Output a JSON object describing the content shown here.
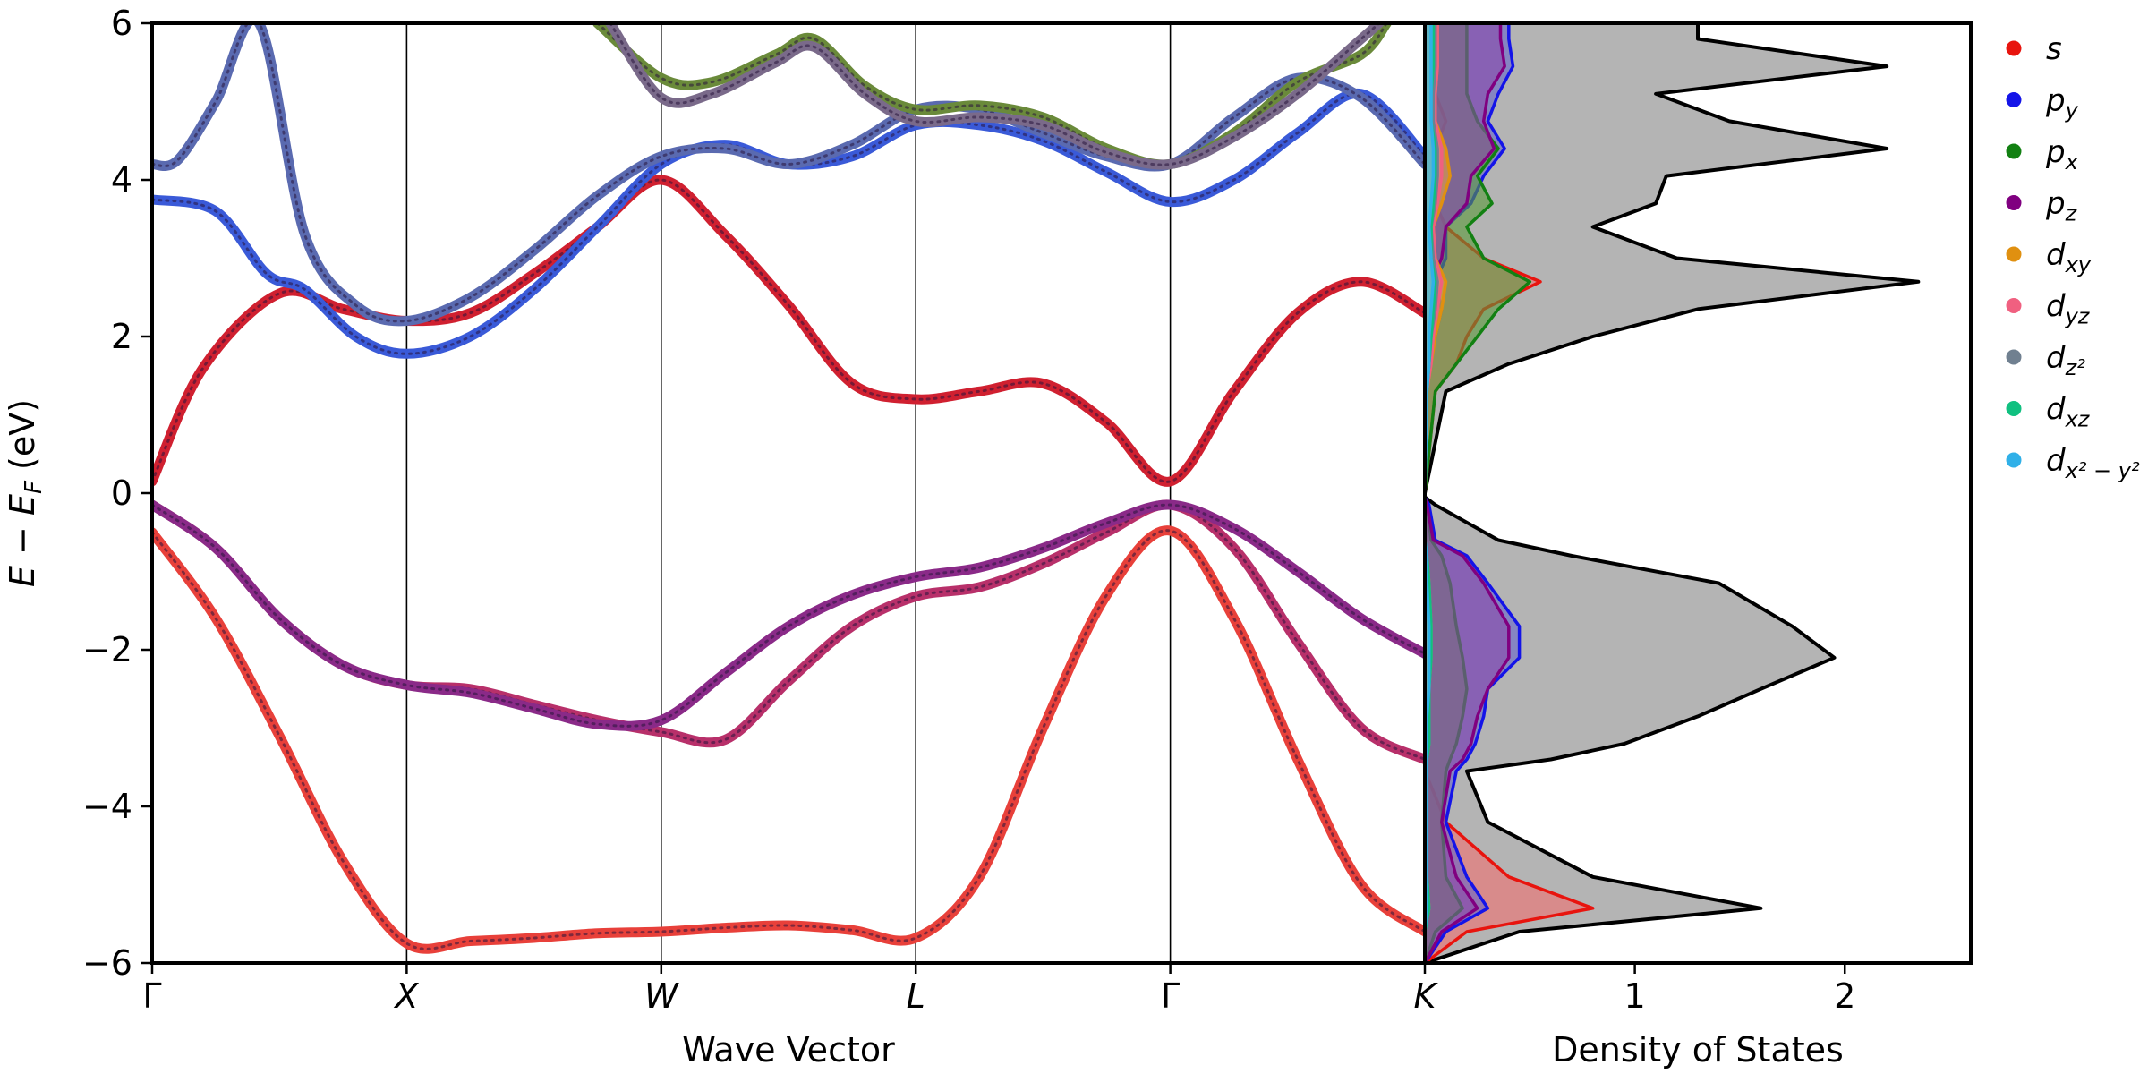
{
  "chart_data": [
    {
      "type": "line",
      "title": "",
      "xlabel": "Wave Vector",
      "ylabel": "E - E_F (eV)",
      "ylabel_parts": {
        "e": "E",
        "minus": " − ",
        "ef": "E",
        "ef_sub": "F",
        "unit": " (eV)"
      },
      "ylim": [
        -6,
        6
      ],
      "y_ticks": [
        -6,
        -4,
        -2,
        0,
        2,
        4,
        6
      ],
      "y_tick_labels": [
        "−6",
        "−4",
        "−2",
        "0",
        "2",
        "4",
        "6"
      ],
      "k_points": [
        {
          "label": "Γ",
          "x": 0.0
        },
        {
          "label": "X",
          "x": 1.0
        },
        {
          "label": "W",
          "x": 2.0
        },
        {
          "label": "L",
          "x": 3.0
        },
        {
          "label": "Γ",
          "x": 4.0
        },
        {
          "label": "K",
          "x": 5.0
        }
      ],
      "series": [
        {
          "name": "band-1",
          "color": "#e8403a",
          "x": [
            0,
            0.25,
            0.5,
            0.75,
            1,
            1.25,
            1.5,
            1.75,
            2,
            2.25,
            2.5,
            2.75,
            3,
            3.25,
            3.5,
            3.75,
            4,
            4.25,
            4.5,
            4.75,
            5
          ],
          "y": [
            -0.5,
            -1.6,
            -3.1,
            -4.7,
            -5.75,
            -5.72,
            -5.68,
            -5.62,
            -5.6,
            -5.55,
            -5.52,
            -5.58,
            -5.68,
            -4.9,
            -3.0,
            -1.3,
            -0.48,
            -1.6,
            -3.4,
            -5.0,
            -5.6
          ]
        },
        {
          "name": "band-2",
          "color": "#b8306a",
          "x": [
            0,
            0.25,
            0.5,
            0.75,
            1,
            1.25,
            1.5,
            1.75,
            2,
            2.25,
            2.5,
            2.75,
            3,
            3.25,
            3.5,
            3.75,
            4,
            4.25,
            4.5,
            4.75,
            5
          ],
          "y": [
            -0.15,
            -0.7,
            -1.6,
            -2.2,
            -2.45,
            -2.5,
            -2.7,
            -2.9,
            -3.05,
            -3.15,
            -2.4,
            -1.7,
            -1.32,
            -1.2,
            -0.9,
            -0.5,
            -0.15,
            -0.7,
            -1.9,
            -3.0,
            -3.4
          ]
        },
        {
          "name": "band-3",
          "color": "#8a2a88",
          "x": [
            0,
            0.25,
            0.5,
            0.75,
            1,
            1.25,
            1.5,
            1.75,
            2,
            2.25,
            2.5,
            2.75,
            3,
            3.25,
            3.5,
            3.75,
            4,
            4.25,
            4.5,
            4.75,
            5
          ],
          "y": [
            -0.15,
            -0.7,
            -1.6,
            -2.2,
            -2.45,
            -2.55,
            -2.75,
            -2.95,
            -2.9,
            -2.3,
            -1.7,
            -1.3,
            -1.07,
            -0.95,
            -0.7,
            -0.38,
            -0.15,
            -0.45,
            -1.0,
            -1.6,
            -2.05
          ]
        },
        {
          "name": "band-4",
          "color": "#d02030",
          "x": [
            0,
            0.2,
            0.5,
            0.75,
            1,
            1.25,
            1.5,
            1.75,
            2,
            2.25,
            2.5,
            2.75,
            3,
            3.25,
            3.5,
            3.75,
            4,
            4.25,
            4.5,
            4.75,
            5
          ],
          "y": [
            0.15,
            1.6,
            2.55,
            2.35,
            2.2,
            2.3,
            2.8,
            3.4,
            4.0,
            3.3,
            2.4,
            1.4,
            1.2,
            1.3,
            1.4,
            0.9,
            0.15,
            1.3,
            2.3,
            2.7,
            2.3
          ]
        },
        {
          "name": "band-5",
          "color": "#3a5ad8",
          "x": [
            0,
            0.25,
            0.45,
            0.6,
            0.8,
            1,
            1.25,
            1.5,
            1.75,
            2,
            2.25,
            2.5,
            2.75,
            3,
            3.25,
            3.5,
            3.75,
            4,
            4.25,
            4.5,
            4.75,
            5
          ],
          "y": [
            3.75,
            3.6,
            2.8,
            2.6,
            2.0,
            1.78,
            2.0,
            2.6,
            3.4,
            4.2,
            4.45,
            4.2,
            4.3,
            4.7,
            4.7,
            4.5,
            4.1,
            3.72,
            4.0,
            4.6,
            5.1,
            4.3
          ]
        },
        {
          "name": "band-6",
          "color": "#5a6ab0",
          "x": [
            0,
            0.1,
            0.25,
            0.42,
            0.6,
            0.8,
            1,
            1.25,
            1.5,
            1.75,
            2,
            2.25,
            2.5,
            2.75,
            3,
            3.25,
            3.5,
            3.75,
            4,
            4.25,
            4.5,
            4.75,
            5
          ],
          "y": [
            4.2,
            4.25,
            5.0,
            6.0,
            3.3,
            2.4,
            2.2,
            2.5,
            3.1,
            3.8,
            4.3,
            4.4,
            4.2,
            4.45,
            4.9,
            4.9,
            4.6,
            4.3,
            4.2,
            4.8,
            5.3,
            5.05,
            4.2
          ]
        },
        {
          "name": "band-7",
          "color": "#6a8a3a",
          "x": [
            1.75,
            2,
            2.2,
            2.45,
            2.6,
            2.8,
            3,
            3.25,
            3.5,
            3.75,
            4,
            4.25,
            4.5,
            4.75,
            4.85
          ],
          "y": [
            6.0,
            5.3,
            5.25,
            5.6,
            5.8,
            5.2,
            4.9,
            4.95,
            4.8,
            4.4,
            4.2,
            4.6,
            5.25,
            5.6,
            6.0
          ]
        },
        {
          "name": "band-8",
          "color": "#7a6a8a",
          "x": [
            1.8,
            2,
            2.2,
            2.45,
            2.6,
            2.8,
            3,
            3.25,
            3.5,
            3.75,
            4,
            4.25,
            4.5,
            4.75,
            4.82
          ],
          "y": [
            6.0,
            5.05,
            5.1,
            5.5,
            5.7,
            5.1,
            4.75,
            4.8,
            4.7,
            4.35,
            4.2,
            4.55,
            5.1,
            5.8,
            6.0
          ]
        }
      ]
    },
    {
      "type": "area",
      "title": "",
      "xlabel": "Density of States",
      "ylabel": "",
      "ylim": [
        -6,
        6
      ],
      "xlim": [
        0,
        2.6
      ],
      "x_ticks": [
        1,
        2
      ],
      "x_tick_labels": [
        "1",
        "2"
      ],
      "energies": [
        -6.0,
        -5.6,
        -5.3,
        -4.9,
        -4.2,
        -3.55,
        -3.4,
        -3.2,
        -2.85,
        -2.5,
        -2.1,
        -1.7,
        -1.15,
        -0.8,
        -0.6,
        -0.15,
        -0.05,
        0.0,
        1.3,
        1.65,
        2.0,
        2.35,
        2.7,
        3.0,
        3.4,
        3.7,
        4.05,
        4.4,
        4.75,
        5.1,
        5.45,
        5.8,
        6.0
      ],
      "series": [
        {
          "name": "total",
          "color": "#000000",
          "fill": "#b4b4b4",
          "values": [
            0.0,
            0.45,
            1.6,
            0.8,
            0.3,
            0.2,
            0.6,
            0.95,
            1.3,
            1.6,
            1.95,
            1.75,
            1.4,
            0.7,
            0.35,
            0.05,
            0.0,
            0.0,
            0.1,
            0.4,
            0.8,
            1.3,
            2.35,
            1.2,
            0.8,
            1.1,
            1.15,
            2.2,
            1.45,
            1.1,
            2.2,
            1.3,
            1.3
          ]
        },
        {
          "name": "s",
          "color": "#e8140e",
          "fill": "#f07070",
          "values": [
            0.0,
            0.2,
            0.8,
            0.4,
            0.1,
            0.0,
            0.0,
            0.0,
            0.0,
            0.0,
            0.0,
            0.0,
            0.0,
            0.0,
            0.0,
            0.0,
            0.0,
            0.0,
            0.05,
            0.15,
            0.2,
            0.28,
            0.55,
            0.28,
            0.1,
            0.05,
            0.05,
            0.05,
            0.1,
            0.05,
            0.05,
            0.05,
            0.05
          ]
        },
        {
          "name": "p_y",
          "color": "#1414e8",
          "fill": "#6666cc",
          "values": [
            0.0,
            0.1,
            0.3,
            0.2,
            0.1,
            0.15,
            0.2,
            0.24,
            0.28,
            0.3,
            0.45,
            0.45,
            0.3,
            0.2,
            0.05,
            0.02,
            0.0,
            0.0,
            0.0,
            0.02,
            0.05,
            0.08,
            0.05,
            0.1,
            0.1,
            0.22,
            0.28,
            0.38,
            0.3,
            0.35,
            0.42,
            0.4,
            0.4
          ]
        },
        {
          "name": "p_x",
          "color": "#128012",
          "fill": "#5a9a3a",
          "values": [
            0.0,
            0.05,
            0.18,
            0.1,
            0.08,
            0.1,
            0.12,
            0.15,
            0.18,
            0.2,
            0.18,
            0.15,
            0.12,
            0.08,
            0.03,
            0.01,
            0.0,
            0.0,
            0.05,
            0.15,
            0.25,
            0.35,
            0.5,
            0.28,
            0.2,
            0.32,
            0.25,
            0.35,
            0.25,
            0.2,
            0.2,
            0.2,
            0.2
          ]
        },
        {
          "name": "p_z",
          "color": "#800080",
          "fill": "#8a4aaa",
          "values": [
            0.0,
            0.08,
            0.25,
            0.15,
            0.08,
            0.12,
            0.18,
            0.22,
            0.25,
            0.3,
            0.4,
            0.4,
            0.28,
            0.18,
            0.04,
            0.01,
            0.0,
            0.0,
            0.0,
            0.01,
            0.03,
            0.05,
            0.03,
            0.08,
            0.1,
            0.2,
            0.22,
            0.33,
            0.28,
            0.3,
            0.38,
            0.36,
            0.36
          ]
        },
        {
          "name": "d_xy",
          "color": "#e09010",
          "fill": "#e8a040",
          "values": [
            0.0,
            0.0,
            0.02,
            0.01,
            0.01,
            0.01,
            0.01,
            0.02,
            0.02,
            0.02,
            0.03,
            0.03,
            0.02,
            0.01,
            0.0,
            0.0,
            0.0,
            0.0,
            0.01,
            0.03,
            0.05,
            0.08,
            0.1,
            0.05,
            0.04,
            0.08,
            0.12,
            0.1,
            0.05,
            0.05,
            0.06,
            0.06,
            0.06
          ]
        },
        {
          "name": "d_yz",
          "color": "#f06080",
          "fill": "#f07090",
          "values": [
            0.0,
            0.0,
            0.02,
            0.01,
            0.01,
            0.01,
            0.01,
            0.02,
            0.02,
            0.02,
            0.03,
            0.03,
            0.02,
            0.01,
            0.0,
            0.0,
            0.0,
            0.0,
            0.01,
            0.03,
            0.04,
            0.06,
            0.08,
            0.05,
            0.04,
            0.06,
            0.08,
            0.08,
            0.05,
            0.05,
            0.06,
            0.06,
            0.06
          ]
        },
        {
          "name": "d_z2",
          "color": "#708090",
          "fill": "#8090a0",
          "values": [
            0.0,
            0.0,
            0.02,
            0.01,
            0.01,
            0.01,
            0.01,
            0.02,
            0.02,
            0.02,
            0.03,
            0.03,
            0.02,
            0.01,
            0.0,
            0.0,
            0.0,
            0.0,
            0.01,
            0.02,
            0.03,
            0.05,
            0.06,
            0.04,
            0.03,
            0.05,
            0.06,
            0.06,
            0.04,
            0.04,
            0.05,
            0.05,
            0.05
          ]
        },
        {
          "name": "d_xz",
          "color": "#10c080",
          "fill": "#40c090",
          "values": [
            0.0,
            0.0,
            0.02,
            0.01,
            0.01,
            0.01,
            0.01,
            0.02,
            0.02,
            0.02,
            0.03,
            0.03,
            0.02,
            0.01,
            0.0,
            0.0,
            0.0,
            0.0,
            0.01,
            0.02,
            0.03,
            0.04,
            0.05,
            0.03,
            0.03,
            0.04,
            0.05,
            0.05,
            0.03,
            0.03,
            0.04,
            0.04,
            0.04
          ]
        },
        {
          "name": "d_x2-y2",
          "color": "#30b0e8",
          "fill": "#60c0e8",
          "values": [
            0.0,
            0.0,
            0.01,
            0.01,
            0.01,
            0.01,
            0.01,
            0.01,
            0.01,
            0.02,
            0.02,
            0.02,
            0.01,
            0.01,
            0.0,
            0.0,
            0.0,
            0.0,
            0.01,
            0.02,
            0.02,
            0.03,
            0.04,
            0.03,
            0.02,
            0.03,
            0.04,
            0.04,
            0.03,
            0.03,
            0.03,
            0.03,
            0.03
          ]
        }
      ]
    }
  ],
  "legend": {
    "position": "top-right-outside",
    "entries": [
      {
        "base": "s",
        "sub": "",
        "sup": "",
        "color": "#e8140e"
      },
      {
        "base": "p",
        "sub": "y",
        "sup": "",
        "color": "#1414e8"
      },
      {
        "base": "p",
        "sub": "x",
        "sup": "",
        "color": "#128012"
      },
      {
        "base": "p",
        "sub": "z",
        "sup": "",
        "color": "#800080"
      },
      {
        "base": "d",
        "sub": "xy",
        "sup": "",
        "color": "#e09010"
      },
      {
        "base": "d",
        "sub": "yz",
        "sup": "",
        "color": "#f06080"
      },
      {
        "base": "d",
        "sub": "z²",
        "sup": "",
        "color": "#708090"
      },
      {
        "base": "d",
        "sub": "xz",
        "sup": "",
        "color": "#10c080"
      },
      {
        "base": "d",
        "sub": "x² − y²",
        "sup": "",
        "color": "#30b0e8"
      }
    ]
  }
}
